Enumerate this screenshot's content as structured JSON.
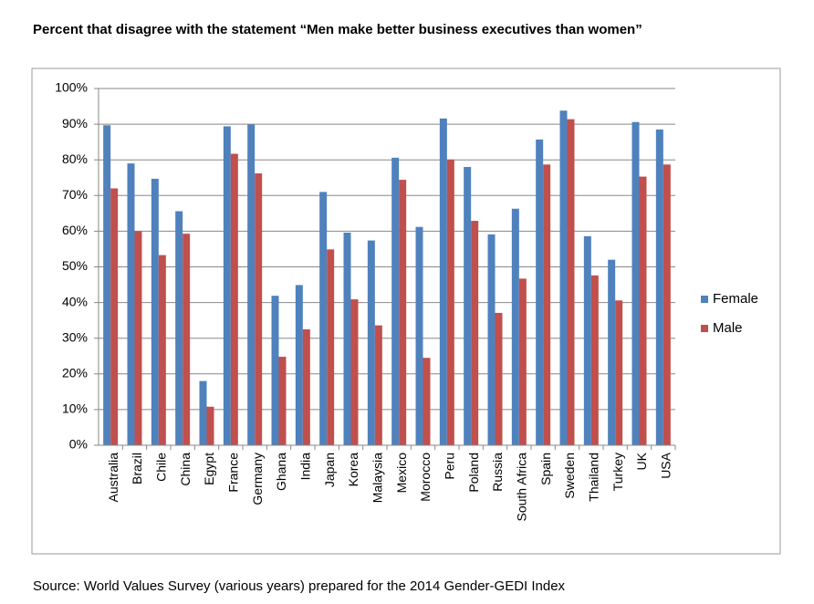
{
  "chart_data": {
    "type": "bar",
    "title": "Percent that disagree with the statement “Men make better business executives than women”",
    "source": "Source: World Values Survey (various years) prepared for the 2014 Gender-GEDI Index",
    "categories": [
      "Australia",
      "Brazil",
      "Chile",
      "China",
      "Egypt",
      "France",
      "Germany",
      "Ghana",
      "India",
      "Japan",
      "Korea",
      "Malaysia",
      "Mexico",
      "Morocco",
      "Peru",
      "Poland",
      "Russia",
      "South Africa",
      "Spain",
      "Sweden",
      "Thailand",
      "Turkey",
      "UK",
      "USA"
    ],
    "series": [
      {
        "name": "Female",
        "color": "#4f81bd",
        "values": [
          89.7,
          79,
          74.7,
          65.6,
          18,
          89.4,
          89.9,
          41.9,
          44.9,
          71,
          59.6,
          57.4,
          80.6,
          61.2,
          91.6,
          78,
          59.1,
          66.3,
          85.7,
          93.8,
          58.6,
          52,
          90.6,
          88.5
        ]
      },
      {
        "name": "Male",
        "color": "#c0504d",
        "values": [
          72,
          60,
          53.3,
          59.3,
          10.8,
          81.7,
          76.2,
          24.8,
          32.5,
          54.9,
          40.9,
          33.6,
          74.4,
          24.5,
          80.1,
          62.9,
          37.1,
          46.7,
          78.7,
          91.4,
          47.6,
          40.6,
          75.3,
          78.7
        ]
      }
    ],
    "ylim": [
      0,
      100
    ],
    "yticks": [
      {
        "value": 0,
        "label": "0%"
      },
      {
        "value": 10,
        "label": "10%"
      },
      {
        "value": 20,
        "label": "20%"
      },
      {
        "value": 30,
        "label": "30%"
      },
      {
        "value": 40,
        "label": "40%"
      },
      {
        "value": 50,
        "label": "50%"
      },
      {
        "value": 60,
        "label": "60%"
      },
      {
        "value": 70,
        "label": "70%"
      },
      {
        "value": 80,
        "label": "80%"
      },
      {
        "value": 90,
        "label": "90%"
      },
      {
        "value": 100,
        "label": "100%"
      }
    ],
    "grid": true,
    "legend": "right"
  }
}
